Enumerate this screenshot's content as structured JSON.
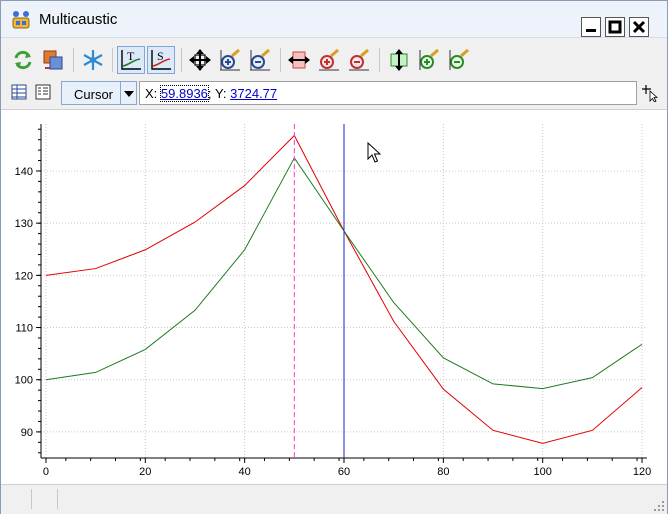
{
  "window": {
    "title": "Multicaustic"
  },
  "toolbar2": {
    "mode": "Cursor",
    "x_label": "X:",
    "x_value": "59.8936",
    "separator": ";",
    "y_label": "Y:",
    "y_value": "3724.77"
  },
  "icons": {
    "toolbar1": [
      "refresh-icon",
      "swap-icon",
      "snowflake-icon",
      "t-curve-icon",
      "s-curve-icon",
      "move-all-icon",
      "zoom-in-both-icon",
      "zoom-out-both-icon",
      "horizontal-fit-icon",
      "zoom-in-horizontal-icon",
      "zoom-out-horizontal-icon",
      "vertical-fit-icon",
      "zoom-in-vertical-icon",
      "zoom-out-vertical-icon"
    ],
    "toolbar2": [
      "table-icon",
      "list-icon",
      "dropdown-arrow-icon",
      "crosshair-cursor-icon"
    ]
  },
  "chart_data": {
    "type": "line",
    "xlim": [
      -1,
      121
    ],
    "ylim": [
      85,
      149
    ],
    "x_ticks": [
      0,
      20,
      40,
      60,
      80,
      100,
      120
    ],
    "y_ticks": [
      90,
      100,
      110,
      120,
      130,
      140
    ],
    "grid": true,
    "series": [
      {
        "color": "#e00000",
        "x": [
          0,
          10,
          20,
          30,
          40,
          50,
          60,
          70,
          80,
          90,
          100,
          110,
          120
        ],
        "y": [
          120,
          121.3,
          124.9,
          130.2,
          137.2,
          146.8,
          128.5,
          111.2,
          98.2,
          90.3,
          87.8,
          90.3,
          98.5
        ]
      },
      {
        "color": "#1f7a1f",
        "x": [
          0,
          10,
          20,
          30,
          40,
          50,
          60,
          70,
          80,
          90,
          100,
          110,
          120
        ],
        "y": [
          100,
          101.4,
          105.8,
          113.3,
          124.9,
          142.5,
          128.5,
          114.8,
          104.2,
          99.2,
          98.3,
          100.4,
          106.8
        ]
      }
    ],
    "vlines": [
      {
        "x": 50,
        "color": "#ff33cc",
        "style": "dashed"
      },
      {
        "x": 60,
        "color": "#2222cc",
        "style": "solid"
      }
    ]
  }
}
